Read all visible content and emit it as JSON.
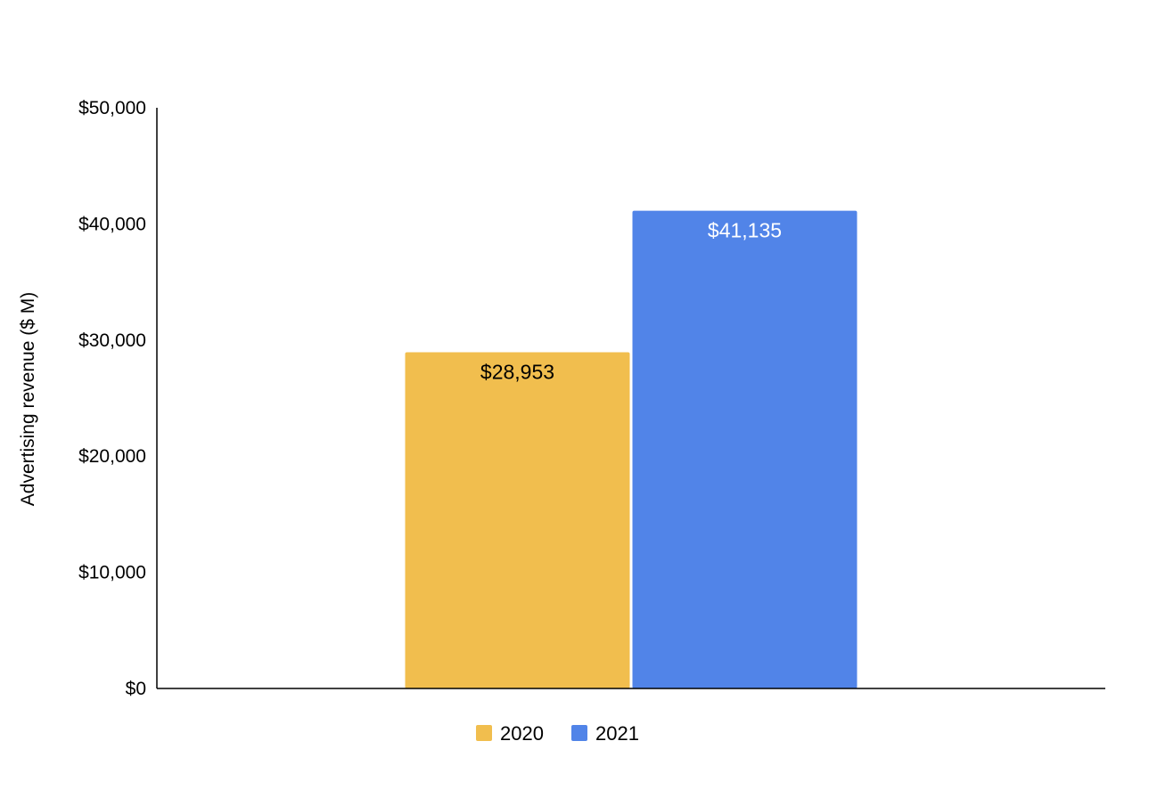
{
  "chart_data": {
    "type": "bar",
    "title": "",
    "xlabel": "",
    "ylabel": "Advertising revenue ($ M)",
    "ylim": [
      0,
      50000
    ],
    "yticks": [
      0,
      10000,
      20000,
      30000,
      40000,
      50000
    ],
    "ytick_labels": [
      "$0",
      "$10,000",
      "$20,000",
      "$30,000",
      "$40,000",
      "$50,000"
    ],
    "grid": false,
    "legend_position": "bottom",
    "series": [
      {
        "name": "2020",
        "values": [
          28953
        ],
        "data_labels": [
          "$28,953"
        ],
        "color": "#F1BE4E",
        "label_color": "#000000"
      },
      {
        "name": "2021",
        "values": [
          41135
        ],
        "data_labels": [
          "$41,135"
        ],
        "color": "#5184E8",
        "label_color": "#ffffff"
      }
    ]
  }
}
